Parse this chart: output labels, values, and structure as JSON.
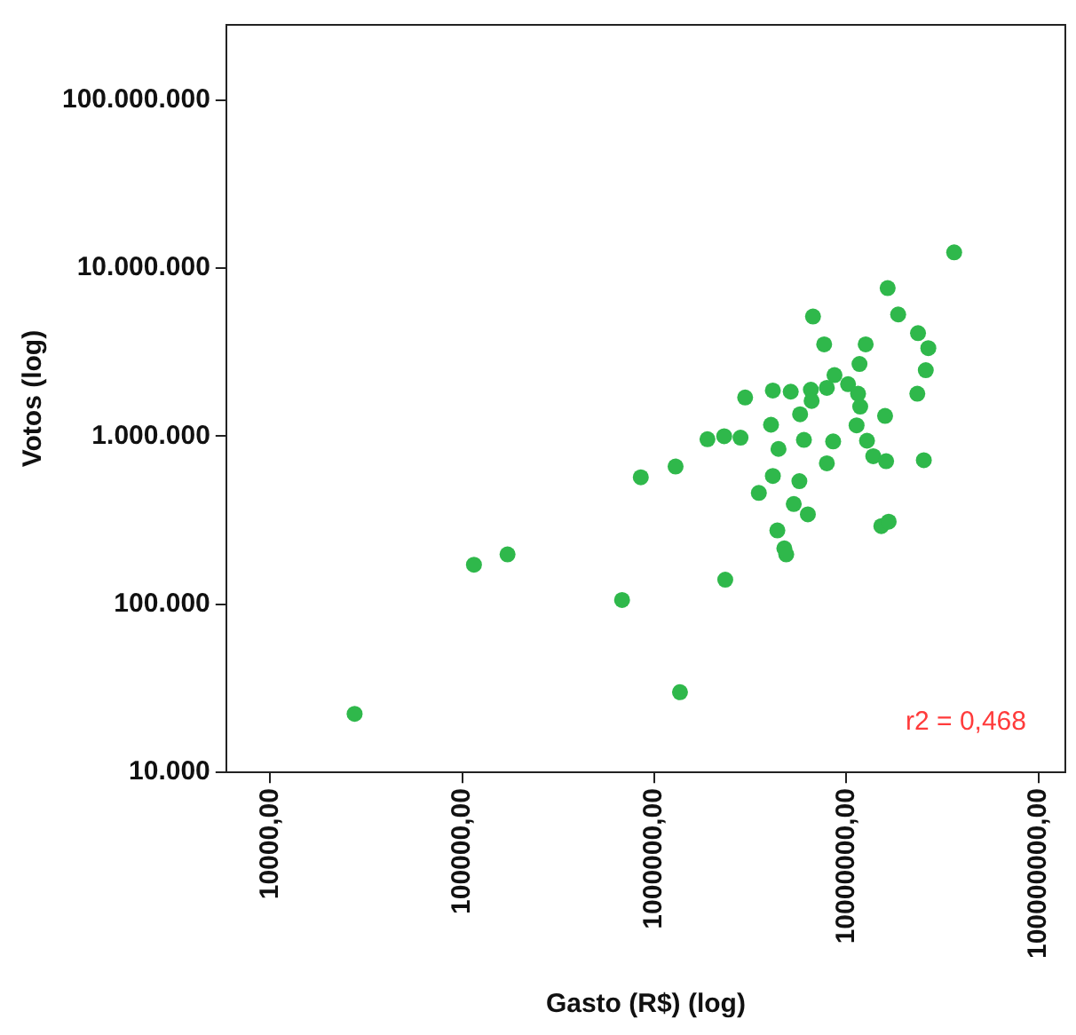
{
  "chart_data": {
    "type": "scatter",
    "xlabel": "Gasto (R$) (log)",
    "ylabel": "Votos (log)",
    "log": "xy",
    "grid": false,
    "legend": false,
    "marker": "circle",
    "xlim": [
      5900,
      138000000
    ],
    "ylim": [
      10000,
      280000000
    ],
    "xticks": [
      {
        "value": 10000,
        "label": "10000,00"
      },
      {
        "value": 100000,
        "label": "100000,00"
      },
      {
        "value": 1000000,
        "label": "1000000,00"
      },
      {
        "value": 10000000,
        "label": "10000000,00"
      },
      {
        "value": 100000000,
        "label": "100000000,00"
      }
    ],
    "yticks": [
      {
        "value": 10000,
        "label": "10.000"
      },
      {
        "value": 100000,
        "label": "100.000"
      },
      {
        "value": 1000000,
        "label": "1.000.000"
      },
      {
        "value": 10000000,
        "label": "10.000.000"
      },
      {
        "value": 100000000,
        "label": "100.000.000"
      }
    ],
    "annotations": [
      "r2 = 0,468"
    ],
    "series": [
      {
        "color": "#2fb84b",
        "x": [
          36400000,
          16400000,
          6700000,
          18600000,
          23600000,
          26700000,
          7660000,
          12600000,
          11700000,
          25900000,
          8670000,
          10200000,
          7910000,
          6530000,
          4140000,
          5130000,
          11500000,
          6590000,
          2970000,
          23400000,
          11800000,
          5740000,
          15900000,
          4050000,
          11300000,
          1890000,
          2310000,
          2810000,
          6010000,
          8530000,
          4430000,
          12800000,
          13800000,
          16100000,
          25300000,
          7910000,
          850000,
          1290000,
          4140000,
          5690000,
          3500000,
          5320000,
          6300000,
          4370000,
          4750000,
          4860000,
          15200000,
          16600000,
          2340000,
          27500,
          115000,
          172000,
          679000,
          1360000
        ],
        "values": [
          12400000,
          7600000,
          5150000,
          5300000,
          4100000,
          3340000,
          3520000,
          3520000,
          2690000,
          2470000,
          2310000,
          2040000,
          1940000,
          1890000,
          1870000,
          1840000,
          1790000,
          1620000,
          1700000,
          1790000,
          1500000,
          1350000,
          1320000,
          1170000,
          1160000,
          960000,
          1000000,
          980000,
          950000,
          930000,
          840000,
          940000,
          760000,
          710000,
          720000,
          690000,
          570000,
          660000,
          580000,
          540000,
          460000,
          395000,
          343000,
          275000,
          215000,
          198000,
          292000,
          310000,
          140000,
          22300,
          172000,
          198000,
          106000,
          30000
        ]
      }
    ]
  }
}
